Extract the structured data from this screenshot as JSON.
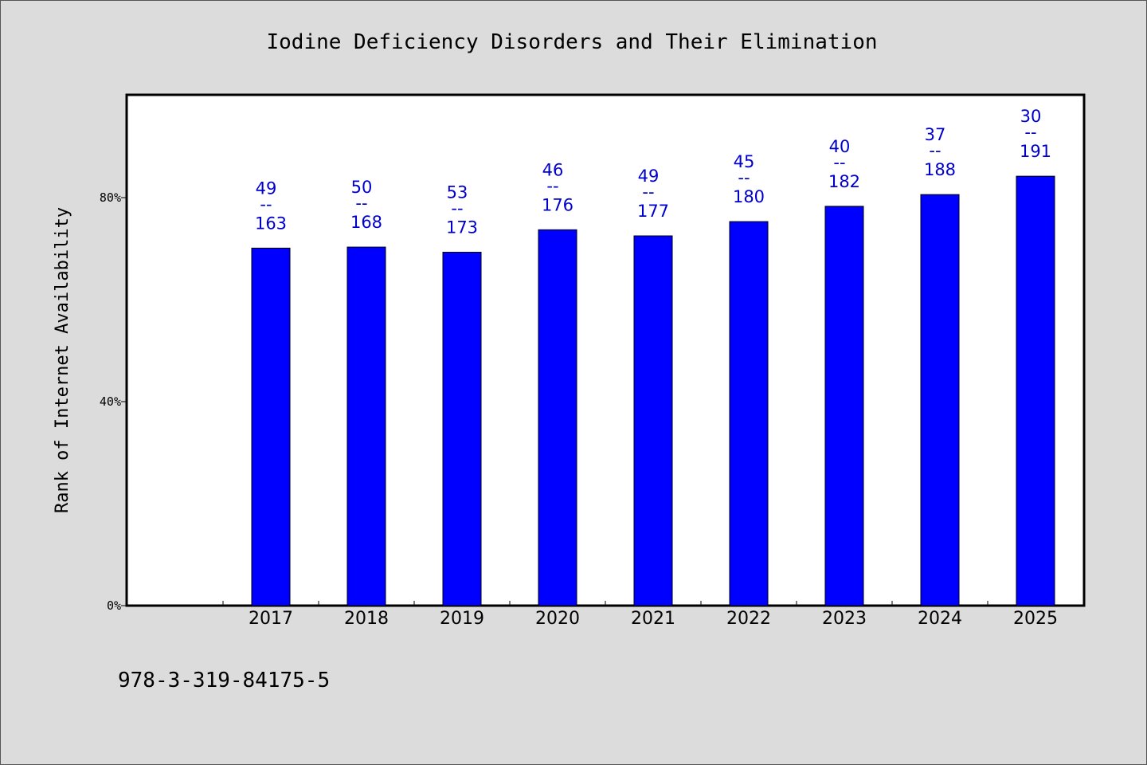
{
  "chart_data": {
    "type": "bar",
    "title": "Iodine Deficiency Disorders and Their Elimination",
    "ylabel": "Rank of Internet Availability",
    "xlabel": "",
    "categories": [
      "2017",
      "2018",
      "2019",
      "2020",
      "2021",
      "2022",
      "2023",
      "2024",
      "2025"
    ],
    "values": [
      70.1,
      70.3,
      69.3,
      73.7,
      72.5,
      75.3,
      78.3,
      80.6,
      84.2
    ],
    "value_unit": "%",
    "bar_labels": [
      {
        "top": "49",
        "sep": "--",
        "bottom": "163"
      },
      {
        "top": "50",
        "sep": "--",
        "bottom": "168"
      },
      {
        "top": "53",
        "sep": "--",
        "bottom": "173"
      },
      {
        "top": "46",
        "sep": "--",
        "bottom": "176"
      },
      {
        "top": "49",
        "sep": "--",
        "bottom": "177"
      },
      {
        "top": "45",
        "sep": "--",
        "bottom": "180"
      },
      {
        "top": "40",
        "sep": "--",
        "bottom": "182"
      },
      {
        "top": "37",
        "sep": "--",
        "bottom": "188"
      },
      {
        "top": "30",
        "sep": "--",
        "bottom": "191"
      }
    ],
    "ylim": [
      0,
      100
    ],
    "yticks": [
      0,
      40,
      80
    ],
    "ytick_labels": [
      "0%",
      "40%",
      "80%"
    ],
    "grid": false,
    "bar_color": "#0000ff",
    "label_color": "#0000cc",
    "background": "#dcdcdc",
    "plot_background": "#ffffff"
  },
  "footer": {
    "isbn": "978-3-319-84175-5"
  }
}
